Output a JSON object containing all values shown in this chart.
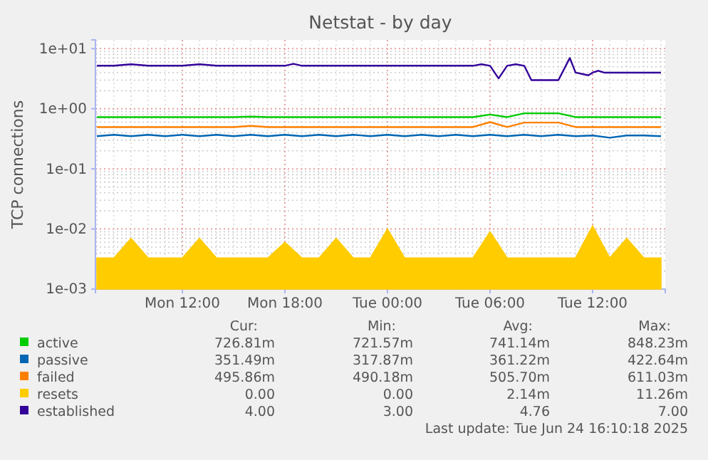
{
  "chart_data": {
    "type": "line",
    "title": "Netstat - by day",
    "ylabel": "TCP connections",
    "x": [
      "2025-06-23T07:00",
      "2025-06-23T08:00",
      "2025-06-23T09:00",
      "2025-06-23T10:00",
      "2025-06-23T11:00",
      "2025-06-23T12:00",
      "2025-06-23T13:00",
      "2025-06-23T14:00",
      "2025-06-23T15:00",
      "2025-06-23T16:00",
      "2025-06-23T17:00",
      "2025-06-23T18:00",
      "2025-06-23T19:00",
      "2025-06-23T20:00",
      "2025-06-23T21:00",
      "2025-06-23T22:00",
      "2025-06-23T23:00",
      "2025-06-24T00:00",
      "2025-06-24T01:00",
      "2025-06-24T02:00",
      "2025-06-24T03:00",
      "2025-06-24T04:00",
      "2025-06-24T05:00",
      "2025-06-24T06:00",
      "2025-06-24T07:00",
      "2025-06-24T08:00",
      "2025-06-24T09:00",
      "2025-06-24T10:00",
      "2025-06-24T11:00",
      "2025-06-24T12:00",
      "2025-06-24T13:00",
      "2025-06-24T14:00",
      "2025-06-24T15:00",
      "2025-06-24T16:00"
    ],
    "series": [
      {
        "name": "active",
        "color": "#00cc00",
        "values": [
          0.727,
          0.727,
          0.727,
          0.727,
          0.727,
          0.727,
          0.727,
          0.727,
          0.727,
          0.74,
          0.727,
          0.727,
          0.727,
          0.727,
          0.727,
          0.727,
          0.727,
          0.727,
          0.727,
          0.727,
          0.727,
          0.727,
          0.727,
          0.8,
          0.727,
          0.84,
          0.84,
          0.84,
          0.727,
          0.727,
          0.727,
          0.727,
          0.727,
          0.727
        ]
      },
      {
        "name": "passive",
        "color": "#0066b3",
        "values": [
          0.35,
          0.37,
          0.35,
          0.37,
          0.35,
          0.37,
          0.35,
          0.37,
          0.35,
          0.37,
          0.35,
          0.37,
          0.35,
          0.37,
          0.35,
          0.37,
          0.35,
          0.37,
          0.35,
          0.37,
          0.35,
          0.37,
          0.35,
          0.37,
          0.35,
          0.37,
          0.35,
          0.37,
          0.35,
          0.36,
          0.33,
          0.36,
          0.36,
          0.35
        ]
      },
      {
        "name": "failed",
        "color": "#ff8000",
        "values": [
          0.496,
          0.496,
          0.496,
          0.496,
          0.496,
          0.496,
          0.496,
          0.496,
          0.496,
          0.52,
          0.496,
          0.496,
          0.496,
          0.496,
          0.496,
          0.496,
          0.496,
          0.496,
          0.496,
          0.496,
          0.496,
          0.496,
          0.496,
          0.6,
          0.496,
          0.59,
          0.59,
          0.59,
          0.496,
          0.496,
          0.496,
          0.496,
          0.496,
          0.496
        ]
      },
      {
        "name": "resets",
        "color": "#ffcc00",
        "type": "area",
        "values": [
          0.0033,
          0.0033,
          0.007,
          0.0033,
          0.0033,
          0.0033,
          0.007,
          0.0033,
          0.0033,
          0.0033,
          0.0033,
          0.006,
          0.0033,
          0.0033,
          0.007,
          0.0033,
          0.0033,
          0.01,
          0.0033,
          0.0033,
          0.0033,
          0.0033,
          0.0033,
          0.009,
          0.0033,
          0.0033,
          0.0033,
          0.0033,
          0.0033,
          0.0113,
          0.0033,
          0.007,
          0.0033,
          0.0033
        ]
      },
      {
        "name": "established",
        "color": "#330099",
        "x": [
          "2025-06-23T07:00",
          "2025-06-23T08:00",
          "2025-06-23T09:00",
          "2025-06-23T10:00",
          "2025-06-23T12:00",
          "2025-06-23T13:00",
          "2025-06-23T14:00",
          "2025-06-23T18:00",
          "2025-06-23T18:30",
          "2025-06-23T19:00",
          "2025-06-24T00:00",
          "2025-06-24T05:00",
          "2025-06-24T05:30",
          "2025-06-24T06:00",
          "2025-06-24T06:30",
          "2025-06-24T07:00",
          "2025-06-24T07:30",
          "2025-06-24T08:00",
          "2025-06-24T08:25",
          "2025-06-24T10:00",
          "2025-06-24T10:40",
          "2025-06-24T11:00",
          "2025-06-24T11:45",
          "2025-06-24T12:00",
          "2025-06-24T12:20",
          "2025-06-24T12:40",
          "2025-06-24T16:00"
        ],
        "values": [
          5.2,
          5.2,
          5.5,
          5.2,
          5.2,
          5.5,
          5.2,
          5.2,
          5.6,
          5.2,
          5.2,
          5.2,
          5.5,
          5.2,
          3.2,
          5.2,
          5.5,
          5.2,
          3.0,
          3.0,
          7.0,
          4.0,
          3.6,
          4.0,
          4.3,
          4.0,
          4.0
        ]
      }
    ],
    "xlim": [
      "2025-06-23T06:55",
      "2025-06-24T16:15"
    ],
    "xticks": [
      {
        "value": "2025-06-23T12:00",
        "label": "Mon 12:00"
      },
      {
        "value": "2025-06-23T18:00",
        "label": "Mon 18:00"
      },
      {
        "value": "2025-06-24T00:00",
        "label": "Tue 00:00"
      },
      {
        "value": "2025-06-24T06:00",
        "label": "Tue 06:00"
      },
      {
        "value": "2025-06-24T12:00",
        "label": "Tue 12:00"
      }
    ],
    "ylim": [
      0.001,
      14
    ],
    "yticks": [
      {
        "value": 0.001,
        "label": "1e-03"
      },
      {
        "value": 0.01,
        "label": "1e-02"
      },
      {
        "value": 0.1,
        "label": "1e-01"
      },
      {
        "value": 1,
        "label": "1e+00"
      },
      {
        "value": 10,
        "label": "1e+01"
      }
    ],
    "log": "y",
    "grid": true,
    "legend": "bottom",
    "annotations": [
      "Cur:",
      "Min:",
      "Avg:",
      "Max:",
      "726.81m",
      "721.57m",
      "741.14m",
      "848.23m",
      "351.49m",
      "317.87m",
      "361.22m",
      "422.64m",
      "495.86m",
      "490.18m",
      "505.70m",
      "611.03m",
      "0.00",
      "0.00",
      "2.14m",
      "11.26m",
      "4.00",
      "3.00",
      "4.76",
      "7.00",
      "Last update: Tue Jun 24 16:10:18 2025"
    ]
  }
}
